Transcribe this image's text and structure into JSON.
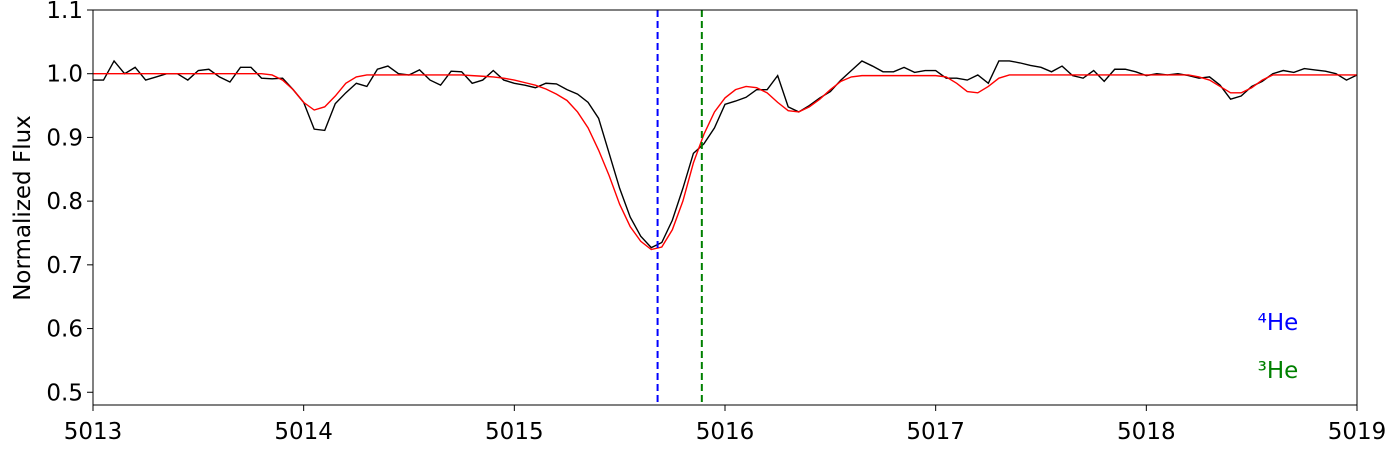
{
  "chart_data": {
    "type": "line",
    "ylabel": "Normalized Flux",
    "x": [
      5013.0,
      5013.05,
      5013.1,
      5013.15,
      5013.2,
      5013.25,
      5013.3,
      5013.35,
      5013.4,
      5013.45,
      5013.5,
      5013.55,
      5013.6,
      5013.65,
      5013.7,
      5013.75,
      5013.8,
      5013.85,
      5013.9,
      5013.95,
      5014.0,
      5014.05,
      5014.1,
      5014.15,
      5014.2,
      5014.25,
      5014.3,
      5014.35,
      5014.4,
      5014.45,
      5014.5,
      5014.55,
      5014.6,
      5014.65,
      5014.7,
      5014.75,
      5014.8,
      5014.85,
      5014.9,
      5014.95,
      5015.0,
      5015.05,
      5015.1,
      5015.15,
      5015.2,
      5015.25,
      5015.3,
      5015.35,
      5015.4,
      5015.45,
      5015.5,
      5015.55,
      5015.6,
      5015.65,
      5015.7,
      5015.75,
      5015.8,
      5015.85,
      5015.9,
      5015.95,
      5016.0,
      5016.05,
      5016.1,
      5016.15,
      5016.2,
      5016.25,
      5016.3,
      5016.35,
      5016.4,
      5016.45,
      5016.5,
      5016.55,
      5016.6,
      5016.65,
      5016.7,
      5016.75,
      5016.8,
      5016.85,
      5016.9,
      5016.95,
      5017.0,
      5017.05,
      5017.1,
      5017.15,
      5017.2,
      5017.25,
      5017.3,
      5017.35,
      5017.4,
      5017.45,
      5017.5,
      5017.55,
      5017.6,
      5017.65,
      5017.7,
      5017.75,
      5017.8,
      5017.85,
      5017.9,
      5017.95,
      5018.0,
      5018.05,
      5018.1,
      5018.15,
      5018.2,
      5018.25,
      5018.3,
      5018.35,
      5018.4,
      5018.45,
      5018.5,
      5018.55,
      5018.6,
      5018.65,
      5018.7,
      5018.75,
      5018.8,
      5018.85,
      5018.9,
      5018.95,
      5019.0
    ],
    "series": [
      {
        "color": "#000000",
        "values": [
          0.99,
          0.99,
          1.02,
          1.0,
          1.01,
          0.99,
          0.995,
          1.0,
          1.0,
          0.99,
          1.005,
          1.007,
          0.995,
          0.987,
          1.01,
          1.01,
          0.993,
          0.992,
          0.993,
          0.975,
          0.955,
          0.913,
          0.911,
          0.953,
          0.97,
          0.985,
          0.98,
          1.007,
          1.012,
          1.0,
          0.998,
          1.006,
          0.99,
          0.982,
          1.004,
          1.003,
          0.985,
          0.99,
          1.005,
          0.99,
          0.985,
          0.982,
          0.978,
          0.985,
          0.984,
          0.975,
          0.968,
          0.955,
          0.93,
          0.875,
          0.82,
          0.775,
          0.745,
          0.727,
          0.735,
          0.77,
          0.82,
          0.875,
          0.89,
          0.915,
          0.952,
          0.957,
          0.963,
          0.975,
          0.975,
          0.997,
          0.948,
          0.94,
          0.95,
          0.962,
          0.972,
          0.99,
          1.005,
          1.02,
          1.012,
          1.003,
          1.003,
          1.01,
          1.002,
          1.005,
          1.005,
          0.993,
          0.993,
          0.99,
          0.998,
          0.985,
          1.02,
          1.02,
          1.017,
          1.013,
          1.01,
          1.003,
          1.012,
          0.997,
          0.993,
          1.005,
          0.988,
          1.007,
          1.007,
          1.003,
          0.997,
          1.0,
          0.998,
          1.0,
          0.997,
          0.993,
          0.995,
          0.982,
          0.96,
          0.965,
          0.98,
          0.988,
          1.0,
          1.005,
          1.002,
          1.008,
          1.006,
          1.004,
          1.0,
          0.99,
          0.998
        ]
      },
      {
        "color": "#ff0000",
        "values": [
          1.0,
          1.0,
          1.0,
          1.0,
          1.0,
          1.0,
          1.0,
          1.0,
          1.0,
          1.0,
          1.0,
          1.0,
          1.0,
          1.0,
          1.0,
          1.0,
          1.0,
          0.998,
          0.99,
          0.975,
          0.955,
          0.943,
          0.948,
          0.965,
          0.985,
          0.995,
          0.998,
          0.998,
          0.998,
          0.998,
          0.998,
          0.998,
          0.998,
          0.998,
          0.998,
          0.998,
          0.997,
          0.996,
          0.995,
          0.993,
          0.99,
          0.986,
          0.982,
          0.976,
          0.968,
          0.958,
          0.94,
          0.915,
          0.88,
          0.84,
          0.795,
          0.76,
          0.737,
          0.724,
          0.728,
          0.755,
          0.8,
          0.86,
          0.905,
          0.94,
          0.962,
          0.975,
          0.98,
          0.978,
          0.97,
          0.955,
          0.942,
          0.94,
          0.948,
          0.96,
          0.975,
          0.988,
          0.995,
          0.997,
          0.997,
          0.997,
          0.997,
          0.997,
          0.997,
          0.997,
          0.997,
          0.995,
          0.985,
          0.972,
          0.97,
          0.98,
          0.993,
          0.998,
          0.998,
          0.998,
          0.998,
          0.998,
          0.998,
          0.998,
          0.998,
          0.998,
          0.998,
          0.998,
          0.998,
          0.998,
          0.998,
          0.998,
          0.998,
          0.998,
          0.998,
          0.995,
          0.99,
          0.98,
          0.97,
          0.97,
          0.978,
          0.99,
          0.998,
          0.998,
          0.998,
          0.998,
          0.998,
          0.998,
          0.998,
          0.998,
          0.998
        ]
      }
    ],
    "vlines": [
      {
        "x": 5015.68,
        "color": "#0000ff",
        "label": "⁴He"
      },
      {
        "x": 5015.89,
        "color": "#008000",
        "label": "³He"
      }
    ],
    "xlim": [
      5013,
      5019
    ],
    "xticks": [
      5013,
      5014,
      5015,
      5016,
      5017,
      5018,
      5019
    ],
    "ylim": [
      0.48,
      1.1
    ],
    "yticks": [
      0.5,
      0.6,
      0.7,
      0.8,
      0.9,
      {
        "value": 1,
        "label": "1.0"
      },
      1.1
    ]
  }
}
